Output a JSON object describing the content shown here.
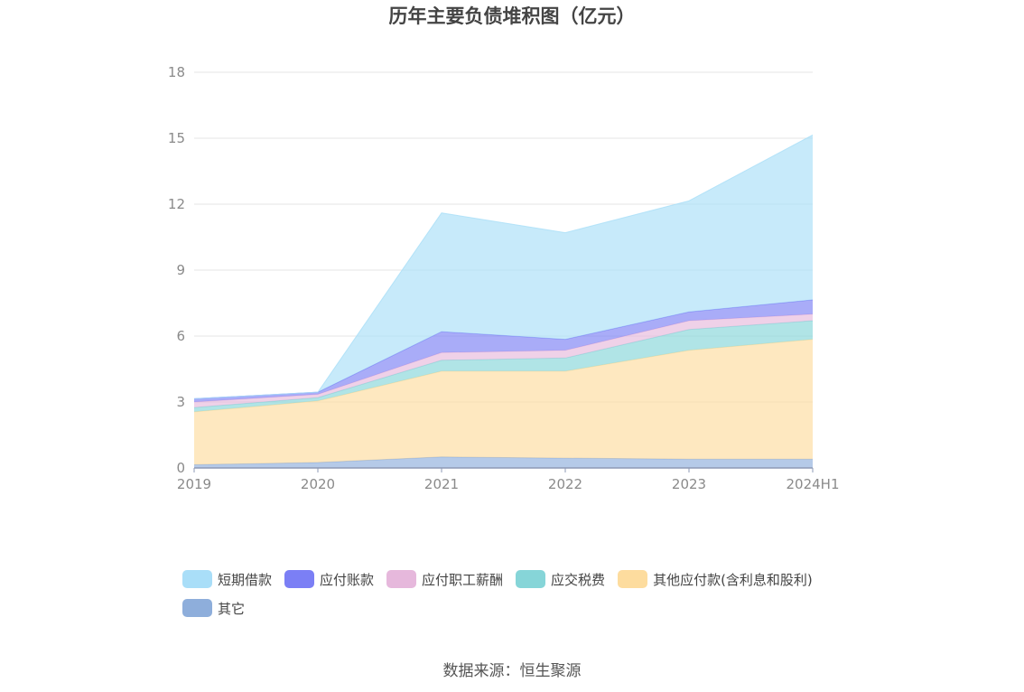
{
  "title": "历年主要负债堆积图（亿元）",
  "source": "数据来源：恒生聚源",
  "chart_data": {
    "type": "area",
    "stacked": true,
    "title": "历年主要负债堆积图（亿元）",
    "xlabel": "",
    "ylabel": "",
    "categories": [
      "2019",
      "2020",
      "2021",
      "2022",
      "2023",
      "2024H1"
    ],
    "ylim": [
      0,
      18
    ],
    "yticks": [
      0,
      3,
      6,
      9,
      12,
      15,
      18
    ],
    "grid": true,
    "legend_position": "bottom",
    "series": [
      {
        "name": "其它",
        "color": "#8eaedb",
        "values": [
          0.15,
          0.25,
          0.5,
          0.45,
          0.4,
          0.4
        ]
      },
      {
        "name": "其他应付款(含利息和股利)",
        "color": "#fddc9e",
        "values": [
          2.4,
          2.8,
          3.9,
          3.95,
          4.95,
          5.45
        ]
      },
      {
        "name": "应交税费",
        "color": "#86d5d8",
        "values": [
          0.2,
          0.15,
          0.5,
          0.6,
          0.95,
          0.85
        ]
      },
      {
        "name": "应付职工薪酬",
        "color": "#e6b8dc",
        "values": [
          0.25,
          0.15,
          0.35,
          0.35,
          0.4,
          0.3
        ]
      },
      {
        "name": "应付账款",
        "color": "#7b7ff5",
        "values": [
          0.15,
          0.1,
          0.95,
          0.5,
          0.4,
          0.65
        ]
      },
      {
        "name": "短期借款",
        "color": "#a9def8",
        "values": [
          0,
          0,
          5.4,
          4.85,
          5.05,
          7.5
        ]
      }
    ],
    "legend": [
      "短期借款",
      "应付账款",
      "应付职工薪酬",
      "应交税费",
      "其他应付款(含利息和股利)",
      "其它"
    ]
  }
}
